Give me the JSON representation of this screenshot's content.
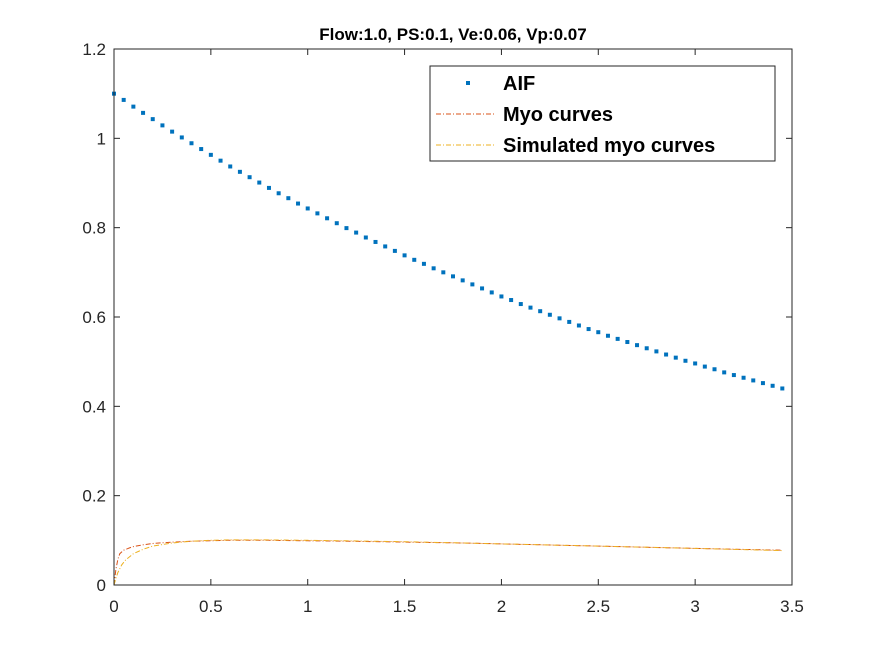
{
  "chart_data": {
    "type": "line",
    "title": "Flow:1.0, PS:0.1, Ve:0.06, Vp:0.07",
    "xlabel": "",
    "ylabel": "",
    "xlim": [
      0,
      3.5
    ],
    "ylim": [
      0,
      1.2
    ],
    "grid": false,
    "legend_position": "top-right",
    "x_ticks": [
      0,
      0.5,
      1,
      1.5,
      2,
      2.5,
      3,
      3.5
    ],
    "x_tick_labels": [
      "0",
      "0.5",
      "1",
      "1.5",
      "2",
      "2.5",
      "3",
      "3.5"
    ],
    "y_ticks": [
      0,
      0.2,
      0.4,
      0.6,
      0.8,
      1,
      1.2
    ],
    "y_tick_labels": [
      "0",
      "0.2",
      "0.4",
      "0.6",
      "0.8",
      "1",
      "1.2"
    ],
    "series": [
      {
        "name": "AIF",
        "style": "dots",
        "color": "#0072BD",
        "x": [
          0,
          0.05,
          0.1,
          0.15,
          0.2,
          0.25,
          0.3,
          0.35,
          0.4,
          0.45,
          0.5,
          0.55,
          0.6,
          0.65,
          0.7,
          0.75,
          0.8,
          0.85,
          0.9,
          0.95,
          1,
          1.05,
          1.1,
          1.15,
          1.2,
          1.25,
          1.3,
          1.35,
          1.4,
          1.45,
          1.5,
          1.55,
          1.6,
          1.65,
          1.7,
          1.75,
          1.8,
          1.85,
          1.9,
          1.95,
          2,
          2.05,
          2.1,
          2.15,
          2.2,
          2.25,
          2.3,
          2.35,
          2.4,
          2.45,
          2.5,
          2.55,
          2.6,
          2.65,
          2.7,
          2.75,
          2.8,
          2.85,
          2.9,
          2.95,
          3,
          3.05,
          3.1,
          3.15,
          3.2,
          3.25,
          3.3,
          3.35,
          3.4,
          3.45
        ],
        "values": [
          1.1,
          1.086,
          1.071,
          1.057,
          1.043,
          1.029,
          1.015,
          1.002,
          0.989,
          0.976,
          0.963,
          0.95,
          0.937,
          0.925,
          0.913,
          0.901,
          0.889,
          0.877,
          0.866,
          0.854,
          0.843,
          0.832,
          0.821,
          0.81,
          0.799,
          0.789,
          0.778,
          0.768,
          0.758,
          0.748,
          0.738,
          0.728,
          0.719,
          0.709,
          0.7,
          0.691,
          0.682,
          0.673,
          0.664,
          0.655,
          0.646,
          0.638,
          0.629,
          0.621,
          0.613,
          0.605,
          0.597,
          0.589,
          0.581,
          0.573,
          0.566,
          0.558,
          0.551,
          0.544,
          0.537,
          0.53,
          0.523,
          0.516,
          0.509,
          0.502,
          0.496,
          0.489,
          0.483,
          0.476,
          0.47,
          0.464,
          0.458,
          0.452,
          0.446,
          0.44
        ]
      },
      {
        "name": "Myo curves",
        "style": "dashdot",
        "color": "#D95319",
        "x": [
          0,
          0.01,
          0.02,
          0.03,
          0.05,
          0.08,
          0.1,
          0.15,
          0.2,
          0.3,
          0.4,
          0.5,
          0.6,
          0.8,
          1.0,
          1.2,
          1.5,
          1.8,
          2.0,
          2.5,
          3.0,
          3.45
        ],
        "values": [
          0,
          0.035,
          0.058,
          0.07,
          0.078,
          0.083,
          0.086,
          0.09,
          0.093,
          0.096,
          0.098,
          0.099,
          0.1,
          0.1,
          0.099,
          0.098,
          0.096,
          0.094,
          0.092,
          0.087,
          0.082,
          0.078
        ]
      },
      {
        "name": "Simulated myo curves",
        "style": "dashdot",
        "color": "#EDB120",
        "x": [
          0,
          0.01,
          0.02,
          0.04,
          0.06,
          0.1,
          0.15,
          0.2,
          0.3,
          0.4,
          0.5,
          0.6,
          0.7,
          0.8,
          1.0,
          1.2,
          1.5,
          1.8,
          2.0,
          2.5,
          3.0,
          3.45
        ],
        "values": [
          0,
          0.015,
          0.028,
          0.045,
          0.056,
          0.07,
          0.08,
          0.087,
          0.094,
          0.098,
          0.1,
          0.101,
          0.101,
          0.101,
          0.1,
          0.099,
          0.097,
          0.094,
          0.092,
          0.087,
          0.082,
          0.077
        ]
      }
    ]
  }
}
